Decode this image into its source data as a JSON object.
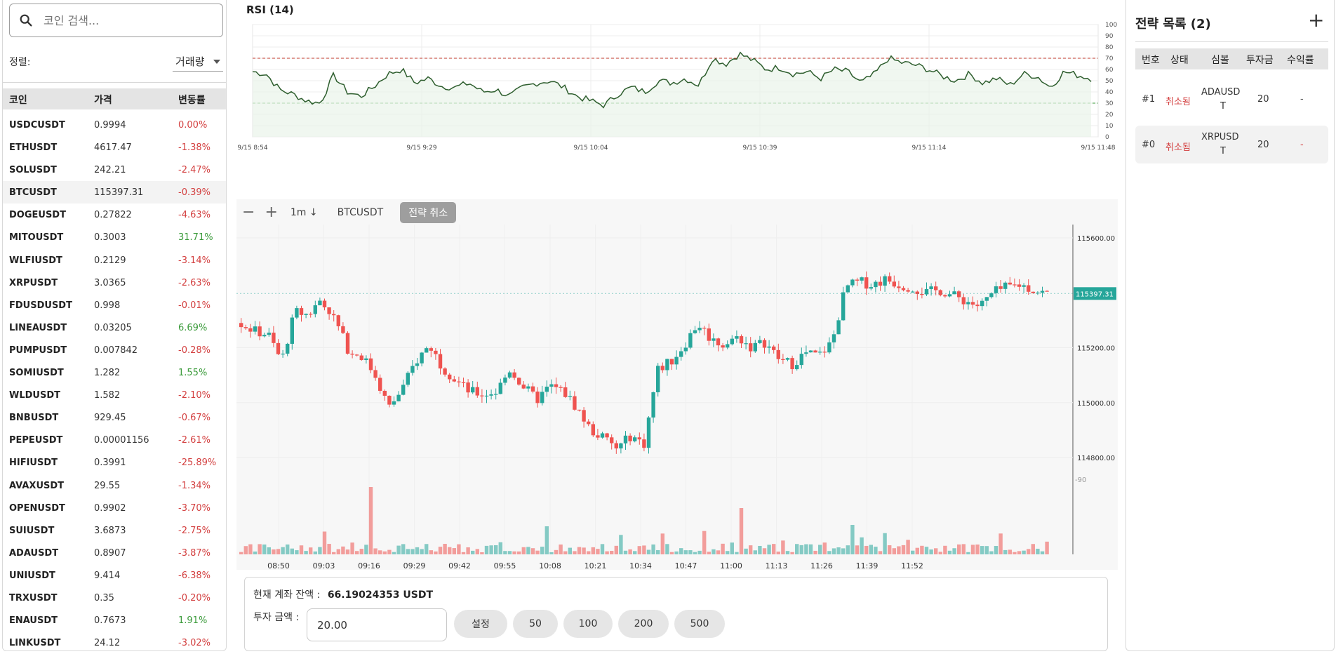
{
  "search": {
    "placeholder": "코인 검색..."
  },
  "sort": {
    "label": "정렬:",
    "value": "거래량"
  },
  "coin_table": {
    "headers": {
      "coin": "코인",
      "price": "가격",
      "change": "변동률"
    },
    "rows": [
      {
        "symbol": "USDCUSDT",
        "price": "0.9994",
        "change": "0.00%",
        "trend": "neg"
      },
      {
        "symbol": "ETHUSDT",
        "price": "4617.47",
        "change": "-1.38%",
        "trend": "neg"
      },
      {
        "symbol": "SOLUSDT",
        "price": "242.21",
        "change": "-2.47%",
        "trend": "neg"
      },
      {
        "symbol": "BTCUSDT",
        "price": "115397.31",
        "change": "-0.39%",
        "trend": "neg",
        "selected": true
      },
      {
        "symbol": "DOGEUSDT",
        "price": "0.27822",
        "change": "-4.63%",
        "trend": "neg"
      },
      {
        "symbol": "MITOUSDT",
        "price": "0.3003",
        "change": "31.71%",
        "trend": "pos"
      },
      {
        "symbol": "WLFIUSDT",
        "price": "0.2129",
        "change": "-3.14%",
        "trend": "neg"
      },
      {
        "symbol": "XRPUSDT",
        "price": "3.0365",
        "change": "-2.63%",
        "trend": "neg"
      },
      {
        "symbol": "FDUSDUSDT",
        "price": "0.998",
        "change": "-0.01%",
        "trend": "neg"
      },
      {
        "symbol": "LINEAUSDT",
        "price": "0.03205",
        "change": "6.69%",
        "trend": "pos"
      },
      {
        "symbol": "PUMPUSDT",
        "price": "0.007842",
        "change": "-0.28%",
        "trend": "neg"
      },
      {
        "symbol": "SOMIUSDT",
        "price": "1.282",
        "change": "1.55%",
        "trend": "pos"
      },
      {
        "symbol": "WLDUSDT",
        "price": "1.582",
        "change": "-2.10%",
        "trend": "neg"
      },
      {
        "symbol": "BNBUSDT",
        "price": "929.45",
        "change": "-0.67%",
        "trend": "neg"
      },
      {
        "symbol": "PEPEUSDT",
        "price": "0.00001156",
        "change": "-2.61%",
        "trend": "neg"
      },
      {
        "symbol": "HIFIUSDT",
        "price": "0.3991",
        "change": "-25.89%",
        "trend": "neg"
      },
      {
        "symbol": "AVAXUSDT",
        "price": "29.55",
        "change": "-1.34%",
        "trend": "neg"
      },
      {
        "symbol": "OPENUSDT",
        "price": "0.9902",
        "change": "-3.70%",
        "trend": "neg"
      },
      {
        "symbol": "SUIUSDT",
        "price": "3.6873",
        "change": "-2.75%",
        "trend": "neg"
      },
      {
        "symbol": "ADAUSDT",
        "price": "0.8907",
        "change": "-3.87%",
        "trend": "neg"
      },
      {
        "symbol": "UNIUSDT",
        "price": "9.414",
        "change": "-6.38%",
        "trend": "neg"
      },
      {
        "symbol": "TRXUSDT",
        "price": "0.35",
        "change": "-0.20%",
        "trend": "neg"
      },
      {
        "symbol": "ENAUSDT",
        "price": "0.7673",
        "change": "1.91%",
        "trend": "pos"
      },
      {
        "symbol": "LINKUSDT",
        "price": "24.12",
        "change": "-3.02%",
        "trend": "neg"
      }
    ]
  },
  "rsi": {
    "title": "RSI (14)",
    "y_ticks": [
      "100",
      "90",
      "80",
      "70",
      "60",
      "50",
      "40",
      "30",
      "20",
      "10",
      "0"
    ],
    "x_ticks": [
      "9/15 8:54",
      "9/15 9:29",
      "9/15 10:04",
      "9/15 10:39",
      "9/15 11:14",
      "9/15 11:48"
    ],
    "overbought": 70,
    "oversold": 30
  },
  "toolbar": {
    "zoom_out": "−",
    "zoom_in": "+",
    "interval": "1m ↓",
    "symbol": "BTCUSDT",
    "cancel_label": "전략 취소"
  },
  "chart_data": {
    "type": "candlestick",
    "symbol": "BTCUSDT",
    "current_price": "115397.31",
    "y_ticks": [
      "115600.00",
      "115200.00",
      "115000.00",
      "114800.00"
    ],
    "volume_tick": "90",
    "x_ticks": [
      "08:50",
      "09:03",
      "09:16",
      "09:29",
      "09:42",
      "09:55",
      "10:08",
      "10:21",
      "10:34",
      "10:47",
      "11:00",
      "11:13",
      "11:26",
      "11:39",
      "11:52"
    ],
    "close_path": [
      115290,
      115260,
      115250,
      115150,
      115330,
      115320,
      115380,
      115300,
      115190,
      115170,
      115100,
      114980,
      115050,
      115150,
      115210,
      115130,
      115080,
      115040,
      115030,
      115040,
      115120,
      115060,
      115010,
      115060,
      115040,
      114980,
      114900,
      114870,
      114830,
      114880,
      114850,
      115120,
      115150,
      115210,
      115290,
      115230,
      115210,
      115240,
      115200,
      115220,
      115160,
      115140,
      115180,
      115170,
      115220,
      115420,
      115440,
      115430,
      115450,
      115430,
      115420,
      115400,
      115410,
      115390,
      115370,
      115350,
      115400,
      115420,
      115430,
      115410,
      115397
    ]
  },
  "order": {
    "balance_label": "현재 계좌 잔액 :",
    "balance_value": "66.19024353 USDT",
    "invest_label": "투자 금액 :",
    "invest_value": "20.00",
    "set_button": "설정",
    "presets": [
      "50",
      "100",
      "200",
      "500"
    ]
  },
  "strategies": {
    "title": "전략 목록 (2)",
    "add_icon": "+",
    "headers": {
      "no": "번호",
      "status": "상태",
      "symbol": "심볼",
      "amount": "투자금",
      "profit": "수익률"
    },
    "rows": [
      {
        "no": "#1",
        "status": "취소됨",
        "symbol_line1": "ADAUSD",
        "symbol_line2": "T",
        "amount": "20",
        "profit": "-"
      },
      {
        "no": "#0",
        "status": "취소됨",
        "symbol_line1": "XRPUSD",
        "symbol_line2": "T",
        "amount": "20",
        "profit": "-"
      }
    ]
  },
  "colors": {
    "up": "#26a69a",
    "down": "#ef5350",
    "rsi_line": "#2e5e2e",
    "overbought": "#c0392b",
    "oversold": "#3b9b3b",
    "price_tag": "#26a69a"
  }
}
